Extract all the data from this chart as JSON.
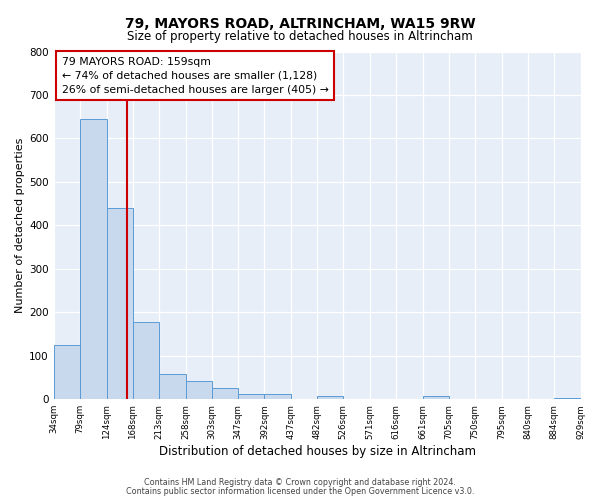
{
  "title": "79, MAYORS ROAD, ALTRINCHAM, WA15 9RW",
  "subtitle": "Size of property relative to detached houses in Altrincham",
  "xlabel": "Distribution of detached houses by size in Altrincham",
  "ylabel": "Number of detached properties",
  "bar_edges": [
    34,
    79,
    124,
    168,
    213,
    258,
    303,
    347,
    392,
    437,
    482,
    526,
    571,
    616,
    661,
    705,
    750,
    795,
    840,
    884,
    929
  ],
  "bar_heights": [
    125,
    645,
    440,
    178,
    57,
    43,
    25,
    12,
    12,
    0,
    8,
    0,
    0,
    0,
    8,
    0,
    0,
    0,
    0,
    3
  ],
  "bar_color": "#c8d9ee",
  "bar_edge_color": "#5b9bd5",
  "property_line_x": 159,
  "property_line_color": "#cc0000",
  "annotation_title": "79 MAYORS ROAD: 159sqm",
  "annotation_line1": "← 74% of detached houses are smaller (1,128)",
  "annotation_line2": "26% of semi-detached houses are larger (405) →",
  "annotation_box_color": "#cc0000",
  "ylim": [
    0,
    800
  ],
  "tick_labels": [
    "34sqm",
    "79sqm",
    "124sqm",
    "168sqm",
    "213sqm",
    "258sqm",
    "303sqm",
    "347sqm",
    "392sqm",
    "437sqm",
    "482sqm",
    "526sqm",
    "571sqm",
    "616sqm",
    "661sqm",
    "705sqm",
    "750sqm",
    "795sqm",
    "840sqm",
    "884sqm",
    "929sqm"
  ],
  "footer1": "Contains HM Land Registry data © Crown copyright and database right 2024.",
  "footer2": "Contains public sector information licensed under the Open Government Licence v3.0.",
  "bg_color": "#ffffff",
  "plot_bg_color": "#e8eef7"
}
